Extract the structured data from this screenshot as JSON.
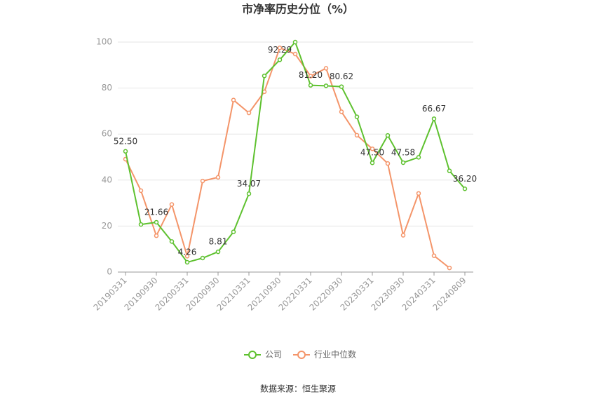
{
  "chart_data": {
    "type": "line",
    "title": "市净率历史分位（%）",
    "categories": [
      "20190331",
      null,
      "20190930",
      null,
      "20200331",
      null,
      "20200930",
      null,
      "20210331",
      null,
      "20210930",
      null,
      "20220331",
      null,
      "20220930",
      null,
      "20230331",
      null,
      "20230930",
      null,
      "20240331",
      null,
      "20240809"
    ],
    "series": [
      {
        "name": "公司",
        "color": "#5ec12f",
        "values": [
          52.5,
          20.7,
          21.66,
          13.3,
          4.26,
          6.1,
          8.81,
          17.5,
          34.07,
          85.3,
          92.29,
          100,
          81.2,
          81.0,
          80.62,
          67.5,
          47.5,
          59.4,
          47.58,
          49.9,
          66.67,
          44,
          36.2
        ],
        "value_labels": [
          "52.50",
          null,
          "21.66",
          null,
          "4.26",
          null,
          "8.81",
          null,
          "34.07",
          null,
          "92.29",
          null,
          "81.20",
          null,
          "80.62",
          null,
          "47.50",
          null,
          "47.58",
          null,
          "66.67",
          null,
          "36.20"
        ]
      },
      {
        "name": "行业中位数",
        "color": "#f4956a",
        "values": [
          49.1,
          35.4,
          15.8,
          29.4,
          6.9,
          39.6,
          41.2,
          74.8,
          69.2,
          78.4,
          97.5,
          94.8,
          85.2,
          88.6,
          69.7,
          59.5,
          53.6,
          47.2,
          16.0,
          34.2,
          7.1,
          1.8,
          null
        ]
      }
    ],
    "ylim": [
      0,
      100
    ],
    "yticks": [
      0,
      20,
      40,
      60,
      80,
      100
    ],
    "grid": true,
    "legend": "bottom",
    "source": "数据来源：恒生聚源"
  }
}
